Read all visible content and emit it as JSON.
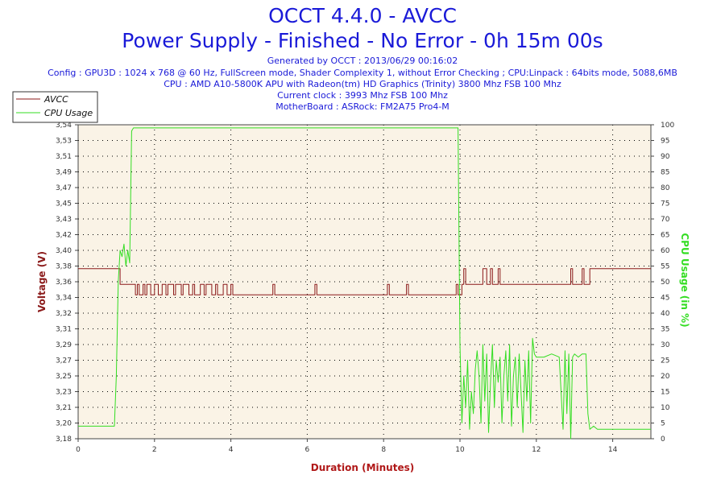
{
  "header": {
    "title": "OCCT 4.4.0 - AVCC",
    "subtitle": "Power Supply - Finished - No Error - 0h 15m 00s",
    "info_lines": [
      "Generated by OCCT : 2013/06/29 00:16:02",
      "Config : GPU3D : 1024 x 768 @ 60 Hz, FullScreen mode, Shader Complexity 1, without Error Checking ; CPU:Linpack : 64bits mode, 5088,6MB",
      "CPU : AMD A10-5800K APU with Radeon(tm) HD Graphics (Trinity) 3800 Mhz FSB 100 Mhz",
      "Current clock : 3993 Mhz FSB 100 Mhz",
      "MotherBoard : ASRock: FM2A75 Pro4-M"
    ]
  },
  "colors": {
    "avcc": "#8b1a1a",
    "cpu": "#33dd22",
    "plot_bg": "#faf3e6",
    "title": "#1a1ad8",
    "axis_label_left": "#8b1a1a",
    "axis_label_right": "#33dd22",
    "xlabel": "#b01818"
  },
  "chart_data": {
    "type": "line",
    "title": "OCCT 4.4.0 - AVCC",
    "xlabel": "Duration (Minutes)",
    "ylabel": "Voltage (V)",
    "y2label": "CPU Usage (in %)",
    "xlim": [
      0,
      15
    ],
    "ylim": [
      3.18,
      3.54
    ],
    "y2lim": [
      0,
      100
    ],
    "x_ticks": [
      0,
      2,
      4,
      6,
      8,
      10,
      12,
      14
    ],
    "y_ticks": [
      "3,18",
      "3,20",
      "3,21",
      "3,23",
      "3,25",
      "3,27",
      "3,29",
      "3,31",
      "3,32",
      "3,34",
      "3,36",
      "3,38",
      "3,40",
      "3,42",
      "3,43",
      "3,45",
      "3,47",
      "3,49",
      "3,51",
      "3,53",
      "3,54"
    ],
    "y2_ticks": [
      0,
      5,
      10,
      15,
      20,
      25,
      30,
      35,
      40,
      45,
      50,
      55,
      60,
      65,
      70,
      75,
      80,
      85,
      90,
      95,
      100
    ],
    "grid": true,
    "legend_position": "top-left",
    "series": [
      {
        "name": "AVCC",
        "axis": "left",
        "x": [
          0,
          1.1,
          1.1,
          1.5,
          1.5,
          1.55,
          1.55,
          1.6,
          1.6,
          1.7,
          1.7,
          1.75,
          1.75,
          1.8,
          1.8,
          1.9,
          1.9,
          2.0,
          2.0,
          2.1,
          2.1,
          2.2,
          2.2,
          2.3,
          2.3,
          2.35,
          2.35,
          2.5,
          2.5,
          2.55,
          2.55,
          2.7,
          2.7,
          2.75,
          2.75,
          2.9,
          2.9,
          3.0,
          3.0,
          3.05,
          3.05,
          3.2,
          3.2,
          3.3,
          3.3,
          3.35,
          3.35,
          3.5,
          3.5,
          3.6,
          3.6,
          3.65,
          3.65,
          3.8,
          3.8,
          3.9,
          3.9,
          4.0,
          4.0,
          4.05,
          4.05,
          5.1,
          5.1,
          5.15,
          5.15,
          6.2,
          6.2,
          6.25,
          6.25,
          8.1,
          8.1,
          8.15,
          8.15,
          8.6,
          8.6,
          8.65,
          8.65,
          9.9,
          9.9,
          9.95,
          9.95,
          10.05,
          10.05,
          10.1,
          10.1,
          10.15,
          10.15,
          10.6,
          10.6,
          10.7,
          10.7,
          10.8,
          10.8,
          10.85,
          10.85,
          11.0,
          11.0,
          11.05,
          11.05,
          12.9,
          12.9,
          12.95,
          12.95,
          13.2,
          13.2,
          13.25,
          13.25,
          13.4,
          13.4,
          15.0
        ],
        "y": [
          3.375,
          3.375,
          3.357,
          3.357,
          3.345,
          3.345,
          3.357,
          3.357,
          3.345,
          3.345,
          3.357,
          3.357,
          3.345,
          3.345,
          3.357,
          3.357,
          3.345,
          3.345,
          3.357,
          3.357,
          3.345,
          3.345,
          3.357,
          3.357,
          3.345,
          3.345,
          3.357,
          3.357,
          3.345,
          3.345,
          3.357,
          3.357,
          3.345,
          3.345,
          3.357,
          3.357,
          3.345,
          3.345,
          3.357,
          3.357,
          3.345,
          3.345,
          3.357,
          3.357,
          3.345,
          3.345,
          3.357,
          3.357,
          3.345,
          3.345,
          3.357,
          3.357,
          3.345,
          3.345,
          3.357,
          3.357,
          3.345,
          3.345,
          3.357,
          3.357,
          3.345,
          3.345,
          3.357,
          3.357,
          3.345,
          3.345,
          3.357,
          3.357,
          3.345,
          3.345,
          3.357,
          3.357,
          3.345,
          3.345,
          3.357,
          3.357,
          3.345,
          3.345,
          3.357,
          3.357,
          3.345,
          3.345,
          3.357,
          3.357,
          3.375,
          3.375,
          3.357,
          3.357,
          3.375,
          3.375,
          3.357,
          3.357,
          3.375,
          3.375,
          3.357,
          3.357,
          3.375,
          3.375,
          3.357,
          3.357,
          3.375,
          3.375,
          3.357,
          3.357,
          3.375,
          3.375,
          3.357,
          3.357,
          3.375,
          3.375
        ]
      },
      {
        "name": "CPU Usage",
        "axis": "right",
        "x": [
          0,
          0.5,
          0.95,
          1.0,
          1.05,
          1.1,
          1.15,
          1.2,
          1.25,
          1.3,
          1.35,
          1.4,
          1.45,
          1.5,
          2.0,
          3.0,
          4.0,
          5.0,
          6.0,
          7.0,
          8.0,
          9.0,
          9.9,
          9.95,
          10.0,
          10.05,
          10.1,
          10.15,
          10.2,
          10.25,
          10.3,
          10.35,
          10.4,
          10.45,
          10.5,
          10.55,
          10.6,
          10.65,
          10.7,
          10.75,
          10.8,
          10.85,
          10.9,
          10.95,
          11.0,
          11.05,
          11.1,
          11.15,
          11.2,
          11.25,
          11.3,
          11.35,
          11.4,
          11.45,
          11.5,
          11.55,
          11.6,
          11.65,
          11.7,
          11.75,
          11.8,
          11.85,
          11.9,
          11.95,
          12.0,
          12.2,
          12.4,
          12.6,
          12.7,
          12.75,
          12.8,
          12.85,
          12.9,
          12.95,
          13.0,
          13.1,
          13.2,
          13.3,
          13.35,
          13.4,
          13.5,
          13.6,
          14.0,
          14.5,
          15.0
        ],
        "y": [
          4,
          4,
          4,
          20,
          50,
          60,
          58,
          62,
          55,
          60,
          56,
          98,
          99,
          99,
          99,
          99,
          99,
          99,
          99,
          99,
          99,
          99,
          99,
          99,
          30,
          5,
          20,
          10,
          25,
          3,
          15,
          8,
          22,
          28,
          20,
          5,
          30,
          12,
          27,
          2,
          18,
          30,
          10,
          25,
          18,
          26,
          5,
          20,
          28,
          12,
          30,
          4,
          20,
          26,
          10,
          27,
          15,
          2,
          25,
          12,
          28,
          5,
          32,
          27,
          26,
          26,
          27,
          26,
          3,
          28,
          8,
          27,
          0,
          26,
          27,
          26,
          27,
          27,
          8,
          3,
          4,
          3,
          3,
          3,
          3
        ]
      }
    ]
  }
}
